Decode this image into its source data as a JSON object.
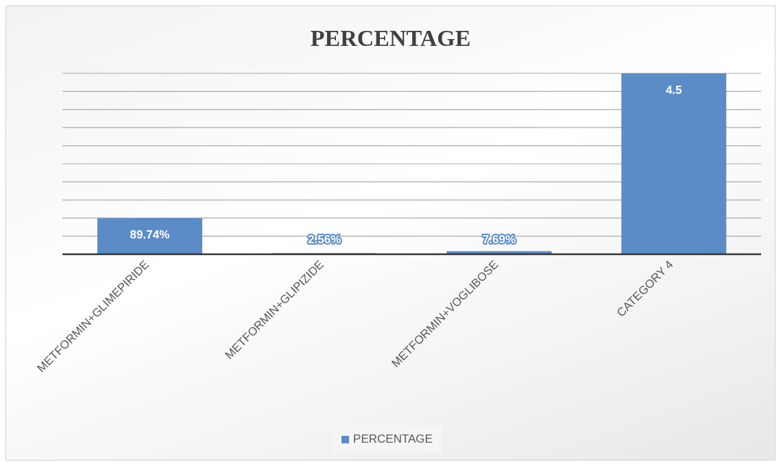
{
  "chart_data": {
    "type": "bar",
    "title": "PERCENTAGE",
    "categories": [
      "METFORMIN+GLIMEPIRIDE",
      "METFORMIN+GLIPIZIDE",
      "METFORMIN+VOGLIBOSE",
      "CATEGORY 4"
    ],
    "series": [
      {
        "name": "PERCENTAGE",
        "color": "#5b8cc8",
        "values": [
          0.8974,
          0.0256,
          0.0769,
          4.5
        ],
        "value_labels": [
          "89.74%",
          "2.56%",
          "7.69%",
          "4.5"
        ]
      }
    ],
    "tick_labels": "x",
    "grid": "y",
    "legend": "bottom"
  }
}
